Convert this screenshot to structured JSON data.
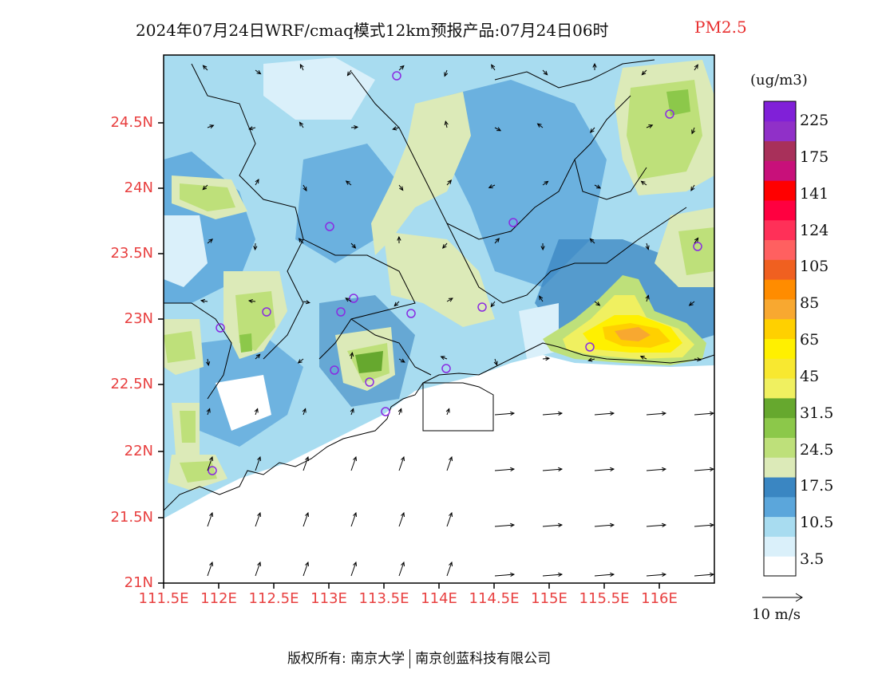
{
  "title": {
    "main": "2024年07月24日WRF/cmaq模式12km预报产品:07月24日06时",
    "variable": "PM2.5"
  },
  "map": {
    "y_labels": [
      "24.5N",
      "24N",
      "23.5N",
      "23N",
      "22.5N",
      "22N",
      "21.5N",
      "21N"
    ],
    "x_labels": [
      "111.5E",
      "112E",
      "112.5E",
      "113E",
      "113.5E",
      "114E",
      "114.5E",
      "115E",
      "115.5E",
      "116E"
    ],
    "colors": {
      "land_base": "#a8dcf0",
      "clean": "#ffffff",
      "boundary": "#000000",
      "station": "#8a2be2",
      "tick_label": "#e84040"
    }
  },
  "colorbar": {
    "unit": "(ug/m3)",
    "labels": [
      "225",
      "175",
      "141",
      "124",
      "105",
      "85",
      "65",
      "45",
      "31.5",
      "24.5",
      "17.5",
      "10.5",
      "3.5"
    ],
    "colors": [
      "#ffffff",
      "#daf0fa",
      "#a8dcf0",
      "#5ba6db",
      "#3a86c2",
      "#dceab8",
      "#bee07a",
      "#8cc84a",
      "#66a82e",
      "#f0f060",
      "#f8e830",
      "#fff000",
      "#ffd000",
      "#f8a830",
      "#ff8c00",
      "#f06020",
      "#ff6060",
      "#ff3058",
      "#ff0040",
      "#ff0000",
      "#c8107a",
      "#a8305a",
      "#9030c8",
      "#8020d8"
    ]
  },
  "wind": {
    "reference_label": "10 m/s"
  },
  "footer": {
    "copyright": "版权所有: 南京大学",
    "partner": "南京创蓝科技有限公司"
  }
}
